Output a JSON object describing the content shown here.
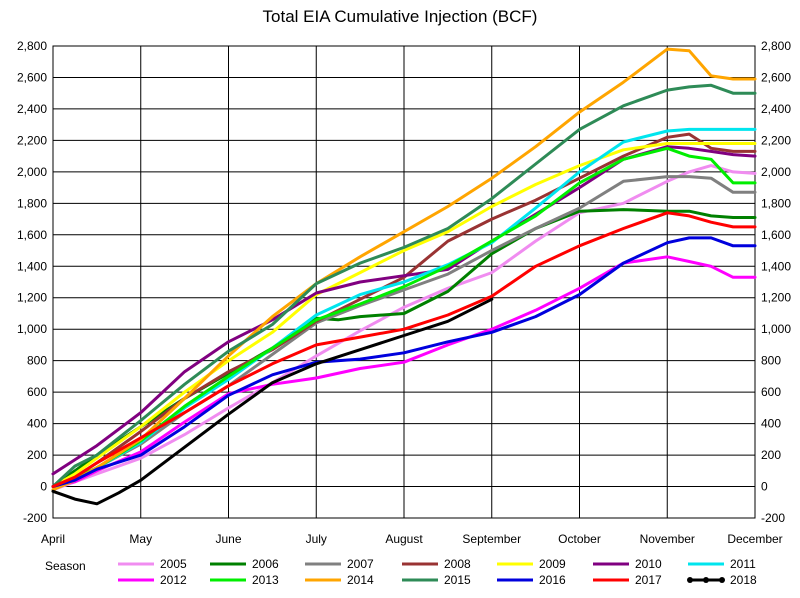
{
  "chart_data": {
    "type": "line",
    "title": "Total EIA Cumulative Injection (BCF)",
    "xlabel": "",
    "ylabel": "",
    "ylim": [
      -200,
      2800
    ],
    "yticks": [
      -200,
      0,
      200,
      400,
      600,
      800,
      1000,
      1200,
      1400,
      1600,
      1800,
      2000,
      2200,
      2400,
      2600,
      2800
    ],
    "yticks_labels": [
      "-200",
      "0",
      "200",
      "400",
      "600",
      "800",
      "1,000",
      "1,200",
      "1,400",
      "1,600",
      "1,800",
      "2,000",
      "2,200",
      "2,400",
      "2,600",
      "2,800"
    ],
    "xticks_labels": [
      "April",
      "May",
      "June",
      "July",
      "August",
      "September",
      "October",
      "November",
      "December"
    ],
    "grid": true,
    "legend": {
      "position": "bottom",
      "title": "Season"
    },
    "series": [
      {
        "name": "2005",
        "color": "#f08cf0",
        "marker": false,
        "x": [
          0,
          0.25,
          0.5,
          1,
          1.5,
          2,
          2.5,
          3,
          3.5,
          4,
          4.5,
          5,
          5.5,
          6,
          6.5,
          7,
          7.25,
          7.5,
          7.75,
          8
        ],
        "values": [
          -20,
          30,
          80,
          180,
          330,
          500,
          660,
          830,
          990,
          1140,
          1260,
          1360,
          1560,
          1740,
          1800,
          1940,
          2000,
          2040,
          2000,
          1990
        ]
      },
      {
        "name": "2006",
        "color": "#008000",
        "marker": false,
        "x": [
          0,
          0.25,
          0.5,
          1,
          1.5,
          2,
          2.5,
          3,
          3.25,
          3.5,
          4,
          4.5,
          5,
          5.5,
          6,
          6.5,
          7,
          7.25,
          7.5,
          7.75,
          8
        ],
        "values": [
          0,
          100,
          200,
          380,
          560,
          720,
          880,
          1070,
          1060,
          1080,
          1100,
          1240,
          1480,
          1640,
          1750,
          1760,
          1750,
          1750,
          1720,
          1710,
          1710
        ]
      },
      {
        "name": "2007",
        "color": "#808080",
        "marker": false,
        "x": [
          0,
          0.25,
          0.5,
          1,
          1.5,
          2,
          2.5,
          3,
          3.5,
          4,
          4.5,
          5,
          5.5,
          6,
          6.5,
          7,
          7.25,
          7.5,
          7.75,
          8
        ],
        "values": [
          0,
          50,
          120,
          270,
          470,
          640,
          840,
          1040,
          1150,
          1250,
          1350,
          1500,
          1640,
          1770,
          1940,
          1970,
          1970,
          1960,
          1870,
          1870
        ]
      },
      {
        "name": "2008",
        "color": "#993333",
        "marker": false,
        "x": [
          0,
          0.25,
          0.5,
          1,
          1.5,
          2,
          2.5,
          3,
          3.5,
          4,
          4.5,
          5,
          5.5,
          6,
          6.5,
          7,
          7.25,
          7.5,
          7.75,
          8
        ],
        "values": [
          0,
          60,
          150,
          350,
          560,
          730,
          870,
          1050,
          1190,
          1330,
          1560,
          1700,
          1820,
          1960,
          2100,
          2220,
          2240,
          2150,
          2130,
          2130
        ]
      },
      {
        "name": "2009",
        "color": "#ffff00",
        "marker": false,
        "x": [
          0,
          0.25,
          0.5,
          1,
          1.5,
          2,
          2.5,
          3,
          3.5,
          4,
          4.5,
          5,
          5.5,
          6,
          6.5,
          7,
          7.25,
          7.5,
          7.75,
          8
        ],
        "values": [
          0,
          80,
          180,
          380,
          600,
          800,
          980,
          1220,
          1360,
          1500,
          1620,
          1780,
          1920,
          2040,
          2140,
          2180,
          2180,
          2180,
          2180,
          2180
        ]
      },
      {
        "name": "2010",
        "color": "#800080",
        "marker": false,
        "x": [
          0,
          0.25,
          0.5,
          1,
          1.5,
          2,
          2.5,
          3,
          3.5,
          4,
          4.5,
          5,
          5.5,
          6,
          6.5,
          7,
          7.25,
          7.5,
          7.75,
          8
        ],
        "values": [
          80,
          170,
          260,
          470,
          730,
          920,
          1060,
          1230,
          1300,
          1340,
          1380,
          1560,
          1730,
          1900,
          2080,
          2160,
          2150,
          2130,
          2110,
          2100
        ]
      },
      {
        "name": "2011",
        "color": "#00e5ee",
        "marker": false,
        "x": [
          0,
          0.25,
          0.5,
          1,
          1.5,
          2,
          2.5,
          3,
          3.5,
          4,
          4.5,
          5,
          5.5,
          6,
          6.5,
          7,
          7.25,
          7.5,
          7.75,
          8
        ],
        "values": [
          0,
          40,
          120,
          280,
          500,
          680,
          880,
          1090,
          1220,
          1300,
          1410,
          1550,
          1770,
          2000,
          2190,
          2260,
          2270,
          2270,
          2270,
          2270
        ]
      },
      {
        "name": "2012",
        "color": "#ff00ff",
        "marker": false,
        "x": [
          0,
          0.25,
          0.5,
          1,
          1.5,
          2,
          2.5,
          3,
          3.5,
          4,
          4.5,
          5,
          5.5,
          6,
          6.5,
          7,
          7.25,
          7.5,
          7.75,
          8
        ],
        "values": [
          0,
          30,
          100,
          220,
          410,
          590,
          650,
          690,
          750,
          790,
          900,
          1000,
          1120,
          1260,
          1420,
          1460,
          1430,
          1400,
          1330,
          1330
        ]
      },
      {
        "name": "2013",
        "color": "#00ee00",
        "marker": false,
        "x": [
          0,
          0.25,
          0.5,
          1,
          1.5,
          2,
          2.5,
          3,
          3.5,
          4,
          4.5,
          5,
          5.5,
          6,
          6.5,
          7,
          7.25,
          7.5,
          7.75,
          8
        ],
        "values": [
          0,
          50,
          120,
          290,
          510,
          700,
          880,
          1060,
          1160,
          1270,
          1400,
          1560,
          1720,
          1930,
          2080,
          2150,
          2100,
          2080,
          1930,
          1930
        ]
      },
      {
        "name": "2014",
        "color": "#ffa500",
        "marker": false,
        "x": [
          0,
          0.25,
          0.5,
          1,
          1.5,
          2,
          2.5,
          3,
          3.5,
          4,
          4.5,
          5,
          5.5,
          6,
          6.5,
          7,
          7.25,
          7.5,
          7.75,
          8
        ],
        "values": [
          -20,
          40,
          120,
          300,
          560,
          830,
          1080,
          1290,
          1460,
          1620,
          1780,
          1960,
          2160,
          2380,
          2570,
          2780,
          2770,
          2610,
          2590,
          2590
        ]
      },
      {
        "name": "2015",
        "color": "#2e8b57",
        "marker": false,
        "x": [
          0,
          0.25,
          0.5,
          1,
          1.5,
          2,
          2.5,
          3,
          3.5,
          4,
          4.5,
          5,
          5.5,
          6,
          6.5,
          7,
          7.25,
          7.5,
          7.75,
          8
        ],
        "values": [
          0,
          130,
          200,
          420,
          650,
          860,
          1030,
          1290,
          1420,
          1520,
          1640,
          1830,
          2050,
          2270,
          2420,
          2520,
          2540,
          2550,
          2500,
          2500
        ]
      },
      {
        "name": "2016",
        "color": "#0000dd",
        "marker": false,
        "x": [
          0,
          0.25,
          0.5,
          1,
          1.5,
          2,
          2.5,
          3,
          3.5,
          4,
          4.5,
          5,
          5.5,
          6,
          6.5,
          7,
          7.25,
          7.5,
          7.75,
          8
        ],
        "values": [
          0,
          40,
          110,
          200,
          380,
          580,
          710,
          790,
          810,
          850,
          920,
          980,
          1080,
          1220,
          1420,
          1550,
          1580,
          1580,
          1530,
          1530
        ]
      },
      {
        "name": "2017",
        "color": "#ff0000",
        "marker": false,
        "x": [
          0,
          0.25,
          0.5,
          1,
          1.5,
          2,
          2.5,
          3,
          3.5,
          4,
          4.5,
          5,
          5.5,
          6,
          6.5,
          7,
          7.25,
          7.5,
          7.75,
          8
        ],
        "values": [
          0,
          60,
          150,
          310,
          470,
          640,
          780,
          900,
          950,
          1000,
          1090,
          1210,
          1400,
          1530,
          1640,
          1740,
          1720,
          1680,
          1650,
          1650
        ]
      },
      {
        "name": "2018",
        "color": "#000000",
        "marker": true,
        "x": [
          0,
          0.25,
          0.5,
          0.75,
          1,
          1.5,
          2,
          2.5,
          3,
          3.5,
          4,
          4.5,
          5
        ],
        "values": [
          -30,
          -80,
          -110,
          -40,
          40,
          250,
          460,
          660,
          780,
          870,
          960,
          1050,
          1190
        ]
      }
    ]
  }
}
